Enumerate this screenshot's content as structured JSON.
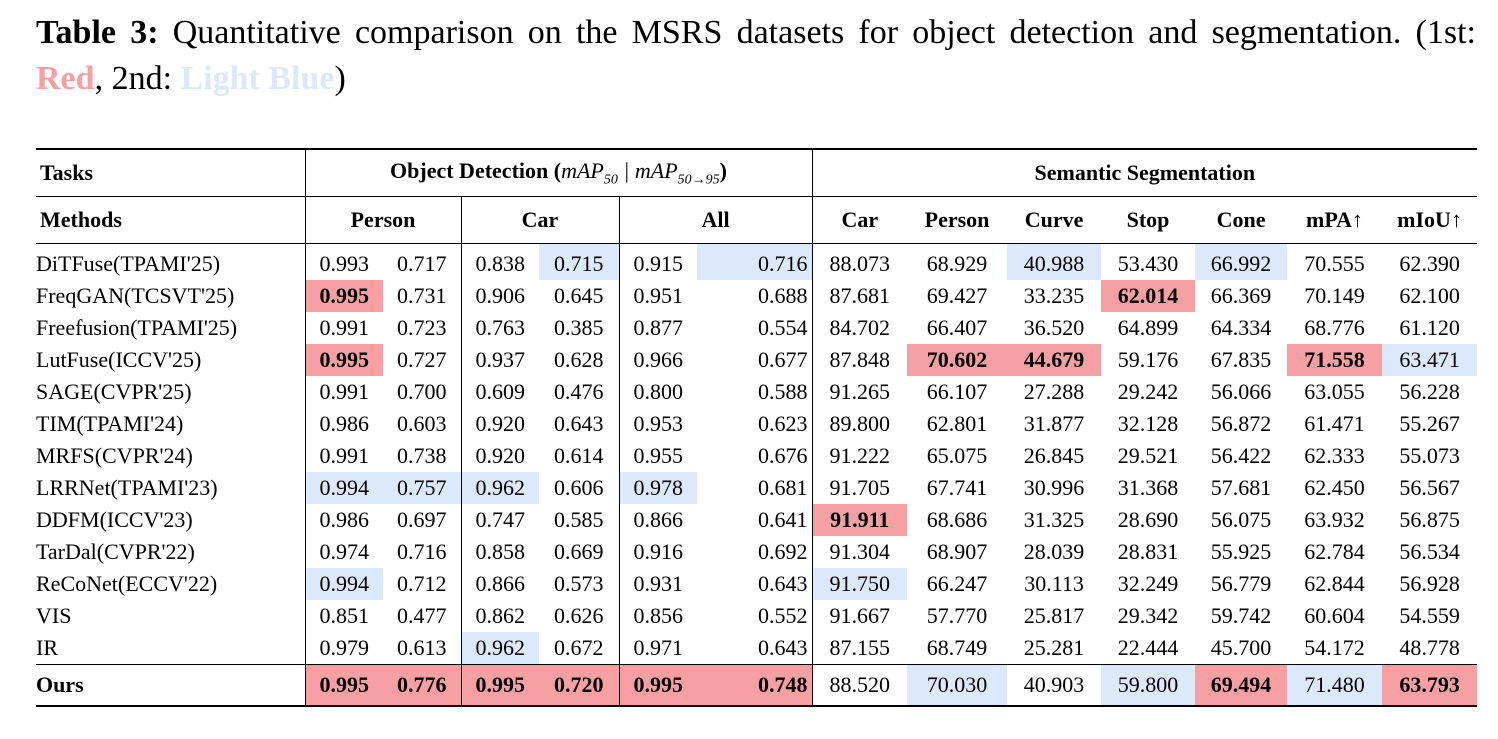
{
  "caption": {
    "label": "Table 3:",
    "text_before": " Quantitative comparison on the MSRS datasets for object detection and segmentation. (1st: ",
    "first_word": "Red",
    "between": ", 2nd: ",
    "second_word": "Light Blue",
    "after": ")"
  },
  "colors": {
    "first": "#f6a0a3",
    "second": "#dce9fb"
  },
  "header": {
    "tasks": "Tasks",
    "od_title": "Object Detection (",
    "od_m1": "mAP",
    "od_s1": "50",
    "od_sep": " | ",
    "od_m2": "mAP",
    "od_s2": "50→95",
    "od_close": ")",
    "seg_title": "Semantic Segmentation",
    "methods": "Methods",
    "od_cols": [
      "Person",
      "Car",
      "All"
    ],
    "seg_cols": [
      "Car",
      "Person",
      "Curve",
      "Stop",
      "Cone",
      "mPA↑",
      "mIoU↑"
    ]
  },
  "rows": [
    {
      "method": "DiTFuse(TPAMI'25)",
      "values": [
        "0.993",
        "0.717",
        "0.838",
        "0.715",
        "0.915",
        "0.716",
        "88.073",
        "68.929",
        "40.988",
        "53.430",
        "66.992",
        "70.555",
        "62.390"
      ],
      "marks": [
        0,
        0,
        0,
        2,
        0,
        2,
        0,
        0,
        2,
        0,
        2,
        0,
        0
      ]
    },
    {
      "method": "FreqGAN(TCSVT'25)",
      "values": [
        "0.995",
        "0.731",
        "0.906",
        "0.645",
        "0.951",
        "0.688",
        "87.681",
        "69.427",
        "33.235",
        "62.014",
        "66.369",
        "70.149",
        "62.100"
      ],
      "marks": [
        1,
        0,
        0,
        0,
        0,
        0,
        0,
        0,
        0,
        1,
        0,
        0,
        0
      ]
    },
    {
      "method": "Freefusion(TPAMI'25)",
      "values": [
        "0.991",
        "0.723",
        "0.763",
        "0.385",
        "0.877",
        "0.554",
        "84.702",
        "66.407",
        "36.520",
        "64.899",
        "64.334",
        "68.776",
        "61.120"
      ],
      "marks": [
        0,
        0,
        0,
        0,
        0,
        0,
        0,
        0,
        0,
        0,
        0,
        0,
        0
      ]
    },
    {
      "method": "LutFuse(ICCV'25)",
      "values": [
        "0.995",
        "0.727",
        "0.937",
        "0.628",
        "0.966",
        "0.677",
        "87.848",
        "70.602",
        "44.679",
        "59.176",
        "67.835",
        "71.558",
        "63.471"
      ],
      "marks": [
        1,
        0,
        0,
        0,
        0,
        0,
        0,
        1,
        1,
        0,
        0,
        1,
        2
      ]
    },
    {
      "method": "SAGE(CVPR'25)",
      "values": [
        "0.991",
        "0.700",
        "0.609",
        "0.476",
        "0.800",
        "0.588",
        "91.265",
        "66.107",
        "27.288",
        "29.242",
        "56.066",
        "63.055",
        "56.228"
      ],
      "marks": [
        0,
        0,
        0,
        0,
        0,
        0,
        0,
        0,
        0,
        0,
        0,
        0,
        0
      ]
    },
    {
      "method": "TIM(TPAMI'24)",
      "values": [
        "0.986",
        "0.603",
        "0.920",
        "0.643",
        "0.953",
        "0.623",
        "89.800",
        "62.801",
        "31.877",
        "32.128",
        "56.872",
        "61.471",
        "55.267"
      ],
      "marks": [
        0,
        0,
        0,
        0,
        0,
        0,
        0,
        0,
        0,
        0,
        0,
        0,
        0
      ]
    },
    {
      "method": "MRFS(CVPR'24)",
      "values": [
        "0.991",
        "0.738",
        "0.920",
        "0.614",
        "0.955",
        "0.676",
        "91.222",
        "65.075",
        "26.845",
        "29.521",
        "56.422",
        "62.333",
        "55.073"
      ],
      "marks": [
        0,
        0,
        0,
        0,
        0,
        0,
        0,
        0,
        0,
        0,
        0,
        0,
        0
      ]
    },
    {
      "method": "LRRNet(TPAMI'23)",
      "values": [
        "0.994",
        "0.757",
        "0.962",
        "0.606",
        "0.978",
        "0.681",
        "91.705",
        "67.741",
        "30.996",
        "31.368",
        "57.681",
        "62.450",
        "56.567"
      ],
      "marks": [
        2,
        2,
        2,
        0,
        2,
        0,
        0,
        0,
        0,
        0,
        0,
        0,
        0
      ]
    },
    {
      "method": "DDFM(ICCV'23)",
      "values": [
        "0.986",
        "0.697",
        "0.747",
        "0.585",
        "0.866",
        "0.641",
        "91.911",
        "68.686",
        "31.325",
        "28.690",
        "56.075",
        "63.932",
        "56.875"
      ],
      "marks": [
        0,
        0,
        0,
        0,
        0,
        0,
        1,
        0,
        0,
        0,
        0,
        0,
        0
      ]
    },
    {
      "method": "TarDal(CVPR'22)",
      "values": [
        "0.974",
        "0.716",
        "0.858",
        "0.669",
        "0.916",
        "0.692",
        "91.304",
        "68.907",
        "28.039",
        "28.831",
        "55.925",
        "62.784",
        "56.534"
      ],
      "marks": [
        0,
        0,
        0,
        0,
        0,
        0,
        0,
        0,
        0,
        0,
        0,
        0,
        0
      ]
    },
    {
      "method": "ReCoNet(ECCV'22)",
      "values": [
        "0.994",
        "0.712",
        "0.866",
        "0.573",
        "0.931",
        "0.643",
        "91.750",
        "66.247",
        "30.113",
        "32.249",
        "56.779",
        "62.844",
        "56.928"
      ],
      "marks": [
        2,
        0,
        0,
        0,
        0,
        0,
        2,
        0,
        0,
        0,
        0,
        0,
        0
      ]
    },
    {
      "method": "VIS",
      "values": [
        "0.851",
        "0.477",
        "0.862",
        "0.626",
        "0.856",
        "0.552",
        "91.667",
        "57.770",
        "25.817",
        "29.342",
        "59.742",
        "60.604",
        "54.559"
      ],
      "marks": [
        0,
        0,
        0,
        0,
        0,
        0,
        0,
        0,
        0,
        0,
        0,
        0,
        0
      ]
    },
    {
      "method": "IR",
      "values": [
        "0.979",
        "0.613",
        "0.962",
        "0.672",
        "0.971",
        "0.643",
        "87.155",
        "68.749",
        "25.281",
        "22.444",
        "45.700",
        "54.172",
        "48.778"
      ],
      "marks": [
        0,
        0,
        2,
        0,
        0,
        0,
        0,
        0,
        0,
        0,
        0,
        0,
        0
      ]
    }
  ],
  "ours": {
    "method": "Ours",
    "values": [
      "0.995",
      "0.776",
      "0.995",
      "0.720",
      "0.995",
      "0.748",
      "88.520",
      "70.030",
      "40.903",
      "59.800",
      "69.494",
      "71.480",
      "63.793"
    ],
    "marks": [
      1,
      1,
      1,
      1,
      1,
      1,
      0,
      2,
      0,
      2,
      1,
      2,
      1
    ]
  }
}
